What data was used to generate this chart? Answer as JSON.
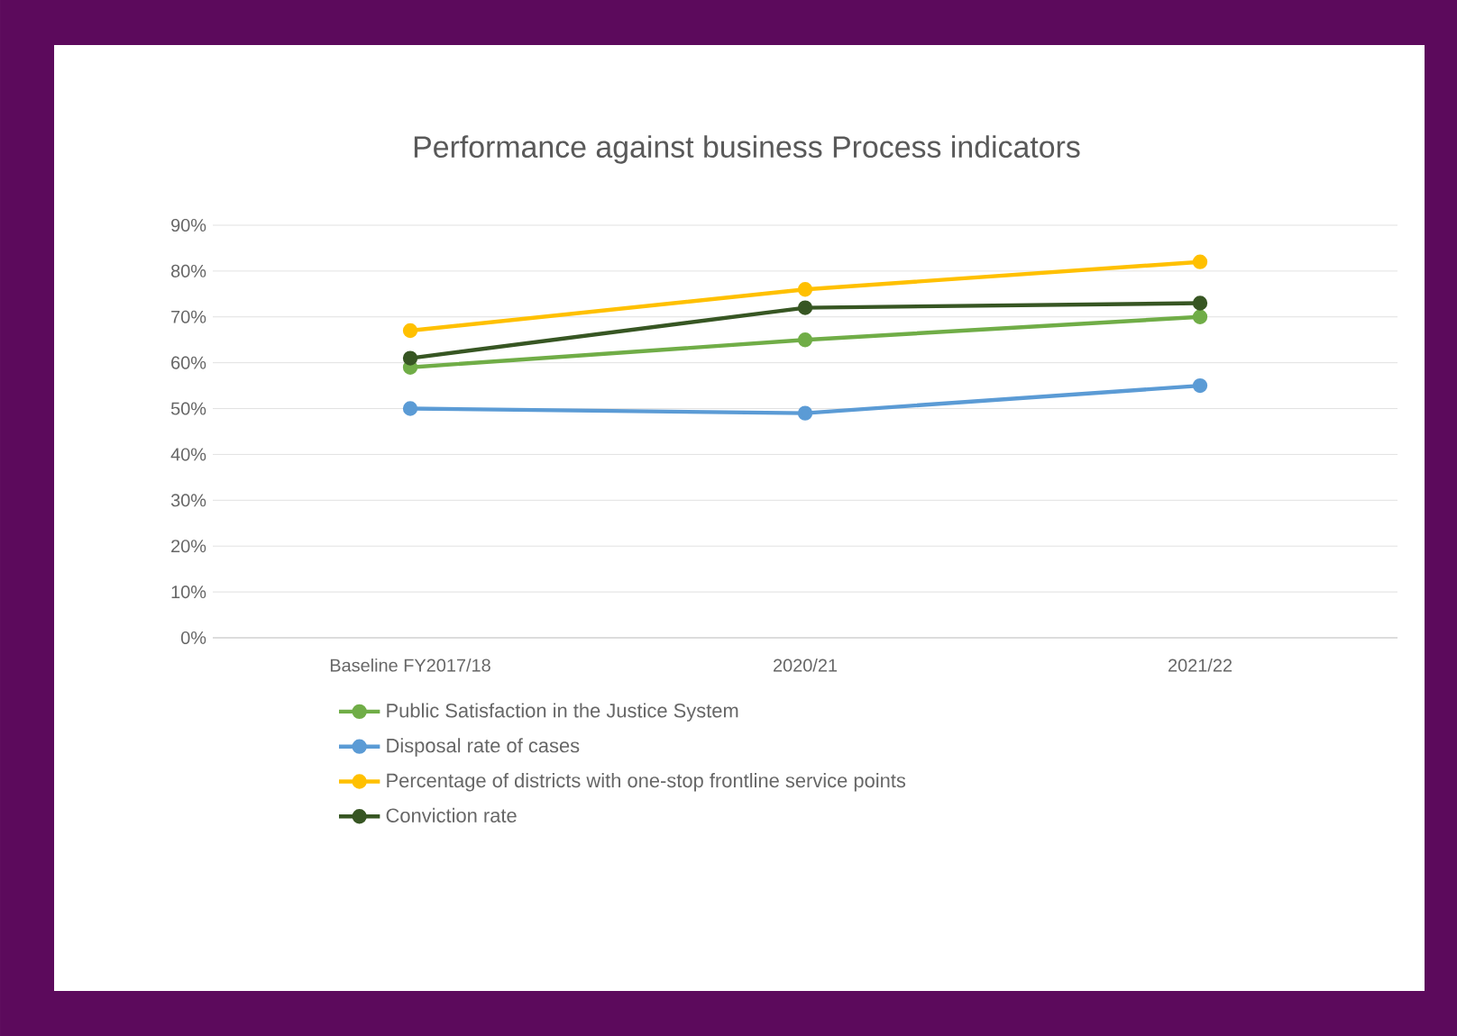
{
  "chart_data": {
    "type": "line",
    "title": "Performance against business Process indicators",
    "categories": [
      "Baseline FY2017/18",
      "2020/21",
      "2021/22"
    ],
    "series": [
      {
        "name": "Public Satisfaction in the Justice System",
        "color": "#70ad47",
        "values": [
          59,
          65,
          70
        ]
      },
      {
        "name": "Disposal rate of cases",
        "color": "#5b9bd5",
        "values": [
          50,
          49,
          55
        ]
      },
      {
        "name": "Percentage of districts with one-stop frontline service points",
        "color": "#ffc000",
        "values": [
          67,
          76,
          82
        ]
      },
      {
        "name": "Conviction rate",
        "color": "#375623",
        "values": [
          61,
          72,
          73
        ]
      }
    ],
    "ylim": [
      0,
      90
    ],
    "yticks": [
      {
        "value": 0,
        "label": "0%"
      },
      {
        "value": 10,
        "label": "10%"
      },
      {
        "value": 20,
        "label": "20%"
      },
      {
        "value": 30,
        "label": "30%"
      },
      {
        "value": 40,
        "label": "40%"
      },
      {
        "value": 50,
        "label": "50%"
      },
      {
        "value": 60,
        "label": "60%"
      },
      {
        "value": 70,
        "label": "70%"
      },
      {
        "value": 80,
        "label": "80%"
      },
      {
        "value": 90,
        "label": "90%"
      }
    ],
    "grid": "y",
    "legend": "bottom",
    "marker": "circle",
    "line_style": "solid"
  }
}
